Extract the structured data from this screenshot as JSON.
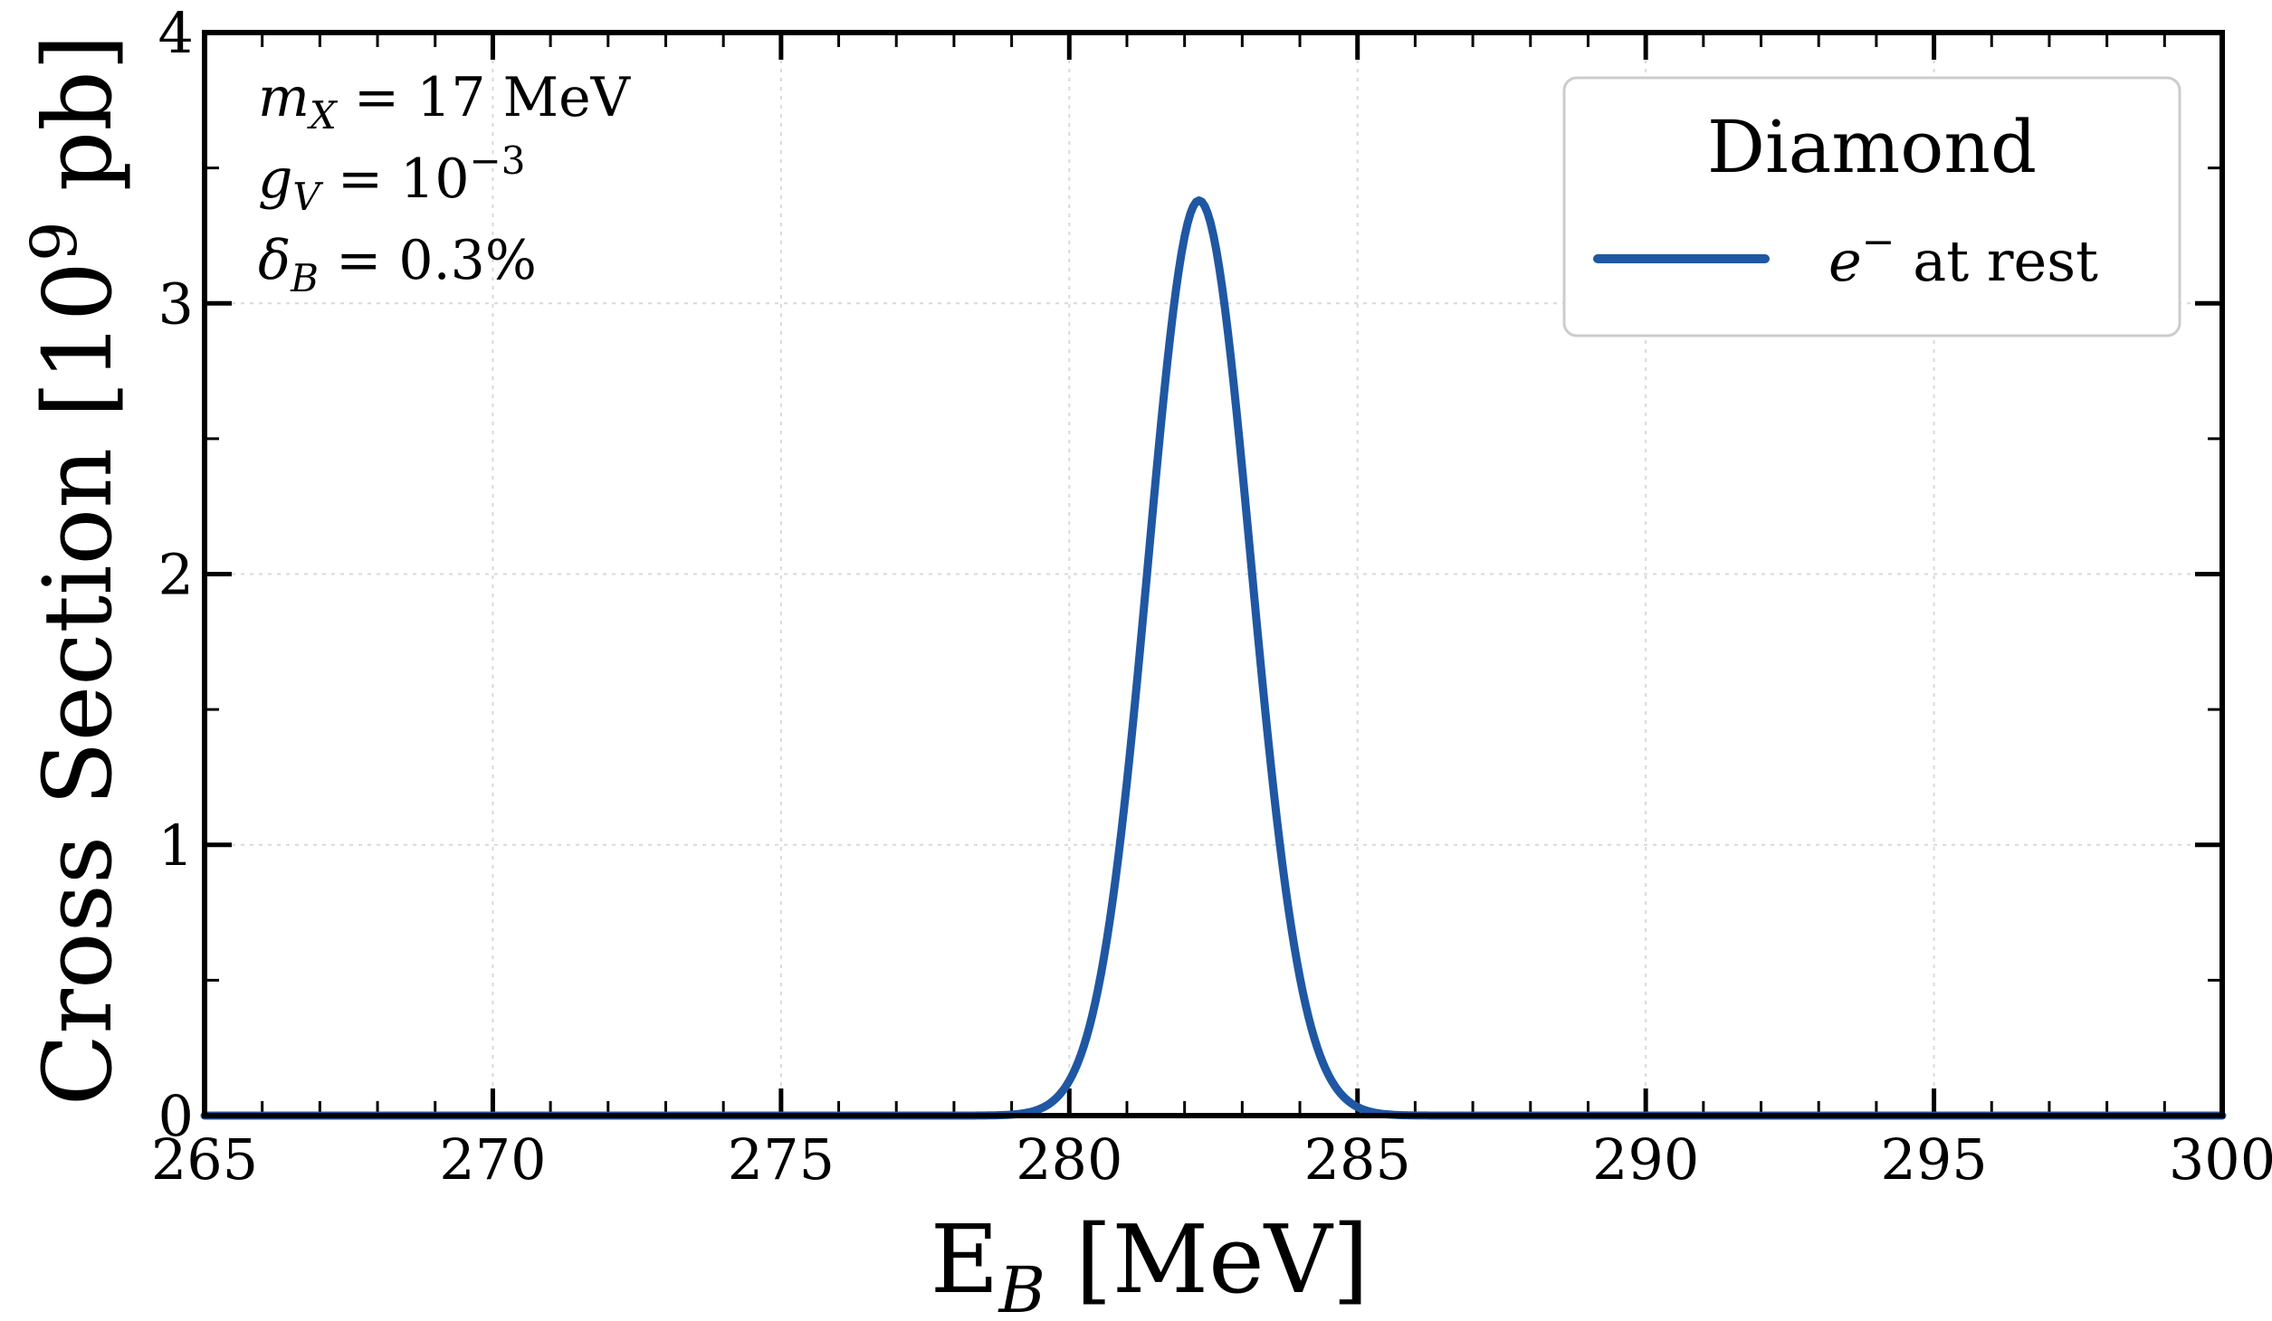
{
  "chart_data": {
    "type": "line",
    "xlabel_main": "E",
    "xlabel_sub": "B",
    "xlabel_unit": " [MeV]",
    "ylabel_pre": "Cross Section [10",
    "ylabel_sup": "9",
    "ylabel_post": " pb]",
    "xlim": [
      265,
      300
    ],
    "ylim": [
      0,
      4
    ],
    "x_ticks": [
      265,
      270,
      275,
      280,
      285,
      290,
      295,
      300
    ],
    "y_ticks": [
      0,
      1,
      2,
      3,
      4
    ],
    "grid": true,
    "legend_position": "top-right",
    "legend_title": "Diamond",
    "series": [
      {
        "name": "e⁻ at rest",
        "color": "#1f57a3",
        "peak_x": 282.25,
        "peak_y": 3.38,
        "x": [
          265,
          279.0,
          279.5,
          280.0,
          280.5,
          281.0,
          281.5,
          281.8,
          282.0,
          282.25,
          282.5,
          282.75,
          283.0,
          283.5,
          284.0,
          284.5,
          285.0,
          285.5,
          300
        ],
        "y": [
          0,
          0.0,
          0.02,
          0.09,
          0.32,
          0.95,
          2.05,
          2.75,
          3.2,
          3.38,
          3.25,
          2.9,
          2.25,
          1.05,
          0.35,
          0.08,
          0.01,
          0.0,
          0
        ]
      }
    ]
  },
  "annotations": {
    "line1_var": "m",
    "line1_sub": "X",
    "line1_rest": " = 17 MeV",
    "line2_var": "g",
    "line2_sub": "V",
    "line2_rest": " = 10",
    "line2_sup": "−3",
    "line3_var": "δ",
    "line3_sub": "B",
    "line3_rest": " = 0.3%"
  },
  "legend": {
    "title": "Diamond",
    "entry_var": "e",
    "entry_sup": "−",
    "entry_rest": " at rest"
  }
}
